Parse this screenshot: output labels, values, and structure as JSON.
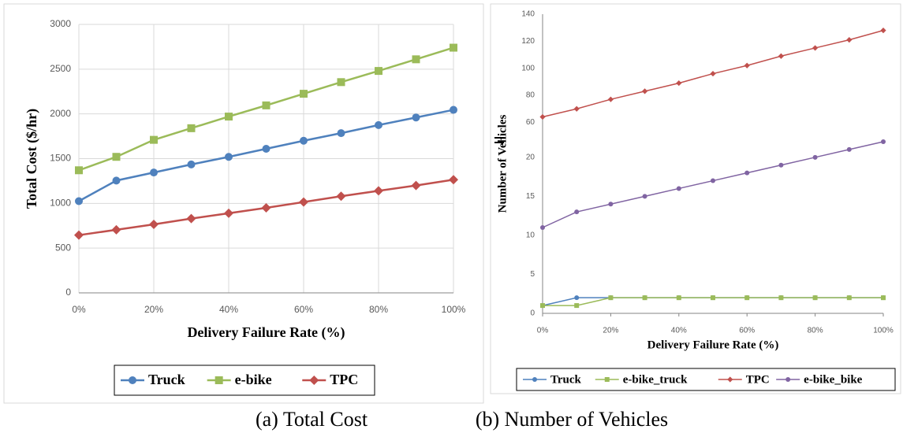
{
  "chart_data": [
    {
      "type": "line",
      "caption": "(a) Total Cost",
      "x_label": "Delivery Failure Rate (%)",
      "y_label": "Total Cost ($/hr)",
      "x": [
        0,
        10,
        20,
        30,
        40,
        50,
        60,
        70,
        80,
        90,
        100
      ],
      "xlim": [
        0,
        100
      ],
      "xticks": [
        {
          "value": 0,
          "label": "0%"
        },
        {
          "value": 20,
          "label": "20%"
        },
        {
          "value": 40,
          "label": "40%"
        },
        {
          "value": 60,
          "label": "60%"
        },
        {
          "value": 80,
          "label": "80%"
        },
        {
          "value": 100,
          "label": "100%"
        }
      ],
      "ylim": [
        0,
        3000
      ],
      "yticks": [
        0,
        500,
        1000,
        1500,
        2000,
        2500,
        3000
      ],
      "grid": true,
      "legend": "bottom",
      "series": [
        {
          "name": "Truck",
          "color": "#4f81bd",
          "marker": "circle",
          "values": [
            1025,
            1255,
            1345,
            1435,
            1520,
            1610,
            1700,
            1785,
            1875,
            1960,
            2045
          ]
        },
        {
          "name": "e-bike",
          "color": "#9bbb59",
          "marker": "square",
          "values": [
            1370,
            1520,
            1710,
            1840,
            1970,
            2095,
            2225,
            2355,
            2480,
            2610,
            2740
          ]
        },
        {
          "name": "TPC",
          "color": "#c0504d",
          "marker": "diamond",
          "values": [
            645,
            705,
            765,
            830,
            890,
            950,
            1015,
            1080,
            1140,
            1200,
            1265
          ]
        }
      ]
    },
    {
      "type": "line",
      "caption": "(b) Number of Vehicles",
      "x_label": "Delivery Failure Rate (%)",
      "y_label": "Number of Vehicles",
      "x": [
        0,
        10,
        20,
        30,
        40,
        50,
        60,
        70,
        80,
        90,
        100
      ],
      "xlim": [
        0,
        100
      ],
      "xticks": [
        {
          "value": 0,
          "label": "0%"
        },
        {
          "value": 20,
          "label": "20%"
        },
        {
          "value": 40,
          "label": "40%"
        },
        {
          "value": 60,
          "label": "60%"
        },
        {
          "value": 80,
          "label": "80%"
        },
        {
          "value": 100,
          "label": "100%"
        }
      ],
      "ylim": [
        0,
        140
      ],
      "ybreak": [
        22,
        48
      ],
      "yticks": [
        0,
        5,
        10,
        15,
        20,
        60,
        80,
        100,
        120,
        140
      ],
      "grid": false,
      "legend": "bottom",
      "series": [
        {
          "name": "Truck",
          "color": "#4f81bd",
          "marker": "circle",
          "values": [
            1,
            2,
            2,
            2,
            2,
            2,
            2,
            2,
            2,
            2,
            2
          ]
        },
        {
          "name": "e-bike_truck",
          "color": "#9bbb59",
          "marker": "square",
          "values": [
            1,
            1,
            2,
            2,
            2,
            2,
            2,
            2,
            2,
            2,
            2
          ]
        },
        {
          "name": "TPC",
          "color": "#c0504d",
          "marker": "diamond",
          "values": [
            64,
            70,
            77,
            83,
            89,
            96,
            102,
            109,
            115,
            121,
            128
          ]
        },
        {
          "name": "e-bike_bike",
          "color": "#8064a2",
          "marker": "circle",
          "values": [
            11,
            13,
            14,
            15,
            16,
            17,
            18,
            19,
            20,
            21,
            22
          ]
        }
      ]
    }
  ]
}
